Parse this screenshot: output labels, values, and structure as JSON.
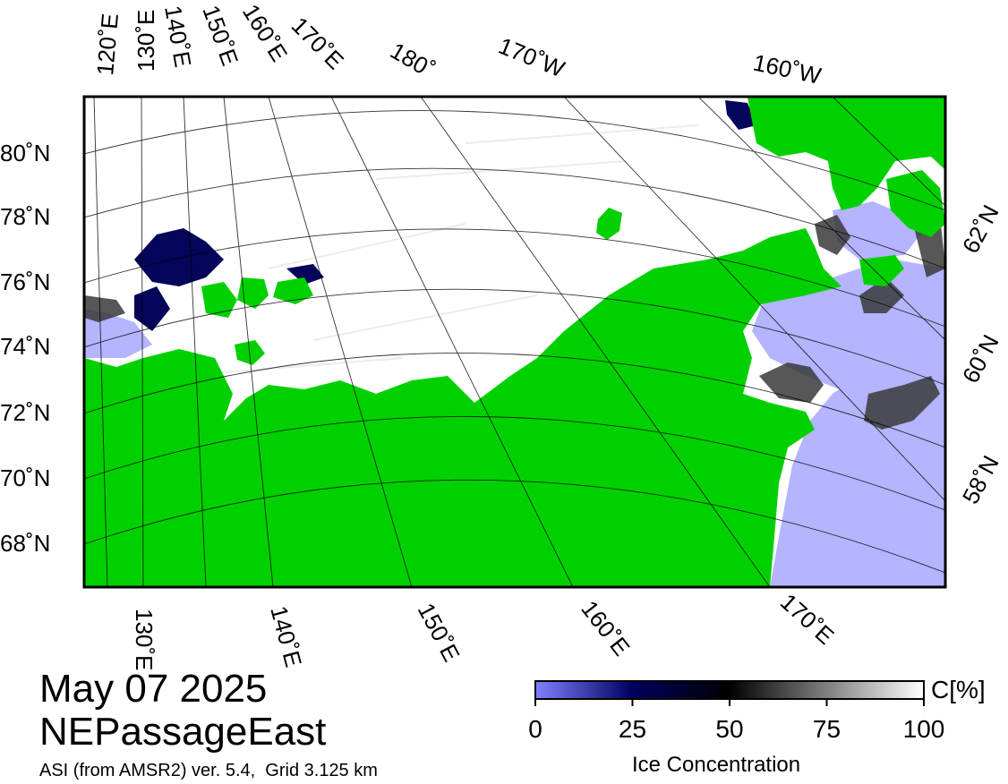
{
  "map": {
    "date": "May 07 2025",
    "region": "NEPassageEast",
    "source": "ASI (from AMSR2) ver. 5.4,  Grid 3.125 km",
    "colors": {
      "land": "#00d000",
      "ocean_open": "#b4b4ff",
      "frame": "#000000",
      "grid": "#000000",
      "ice_high": "#ffffff",
      "ice_low": "#000050"
    },
    "lat_labels": [
      "80˚N",
      "78˚N",
      "76˚N",
      "74˚N",
      "72˚N",
      "70˚N",
      "68˚N"
    ],
    "right_lat_labels": [
      "62˚N",
      "60˚N",
      "58˚N"
    ],
    "top_lon_labels": [
      "120˚E",
      "130˚E",
      "140˚E",
      "150˚E",
      "160˚E",
      "170˚E",
      "180˚",
      "170˚W",
      "160˚W"
    ],
    "bottom_lon_labels": [
      "130˚E",
      "140˚E",
      "150˚E",
      "160˚E",
      "170˚E"
    ]
  },
  "colorbar": {
    "title": "Ice Concentration",
    "unit": "C[%]",
    "ticks": [
      "0",
      "25",
      "50",
      "75",
      "100"
    ],
    "tick_values": [
      0,
      25,
      50,
      75,
      100
    ],
    "range": [
      0,
      100
    ]
  }
}
